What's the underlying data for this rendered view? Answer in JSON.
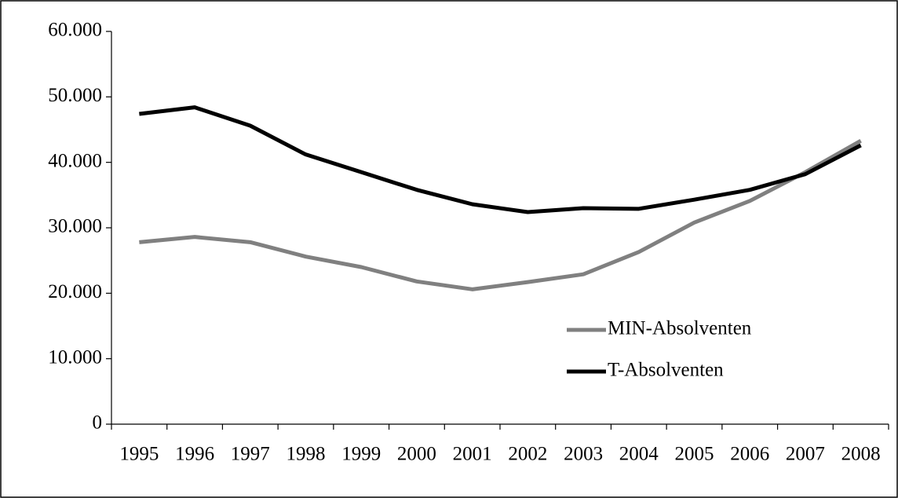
{
  "chart_data": {
    "type": "line",
    "categories": [
      "1995",
      "1996",
      "1997",
      "1998",
      "1999",
      "2000",
      "2001",
      "2002",
      "2003",
      "2004",
      "2005",
      "2006",
      "2007",
      "2008"
    ],
    "series": [
      {
        "name": "MIN-Absolventen",
        "color": "#808080",
        "values": [
          27800,
          28600,
          27800,
          25600,
          24000,
          21800,
          20600,
          21700,
          22900,
          26300,
          30800,
          34100,
          38500,
          43300
        ]
      },
      {
        "name": "T-Absolventen",
        "color": "#000000",
        "values": [
          47400,
          48400,
          45600,
          41200,
          38500,
          35800,
          33600,
          32400,
          33000,
          32900,
          34300,
          35800,
          38200,
          42600
        ]
      }
    ],
    "ylim": [
      0,
      60000
    ],
    "yticks": [
      0,
      {
        "value": 10000,
        "label": "10.000"
      },
      {
        "value": 20000,
        "label": "20.000"
      },
      {
        "value": 30000,
        "label": "30.000"
      },
      {
        "value": 40000,
        "label": "40.000"
      },
      {
        "value": 50000,
        "label": "50.000"
      },
      {
        "value": 60000,
        "label": "60.000"
      }
    ],
    "grid": false,
    "legend": "right"
  }
}
